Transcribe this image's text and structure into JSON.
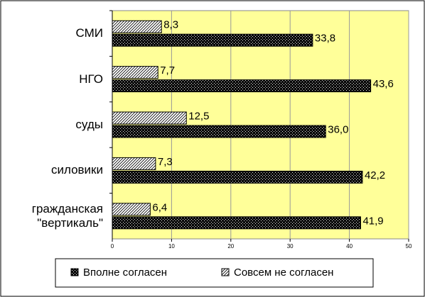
{
  "chart_data": {
    "type": "bar",
    "orientation": "horizontal",
    "categories": [
      "СМИ",
      "НГО",
      "суды",
      "силовики",
      "гражданская \"вертикаль\""
    ],
    "series": [
      {
        "name": "Вполне согласен",
        "color": "#000000",
        "pattern": "crosshatch",
        "values": [
          33.8,
          43.6,
          36.0,
          42.2,
          41.9
        ],
        "value_labels": [
          "33,8",
          "43,6",
          "36,0",
          "42,2",
          "41,9"
        ]
      },
      {
        "name": "Совсем не согласен",
        "color": "#ffffff",
        "pattern": "diagonal",
        "values": [
          8.3,
          7.7,
          12.5,
          7.3,
          6.4
        ],
        "value_labels": [
          "8,3",
          "7,7",
          "12,5",
          "7,3",
          "6,4"
        ]
      }
    ],
    "xlim": [
      0,
      50
    ],
    "xticks": [
      0,
      10,
      20,
      30,
      40,
      50
    ],
    "grid": true,
    "legend": "bottom"
  }
}
